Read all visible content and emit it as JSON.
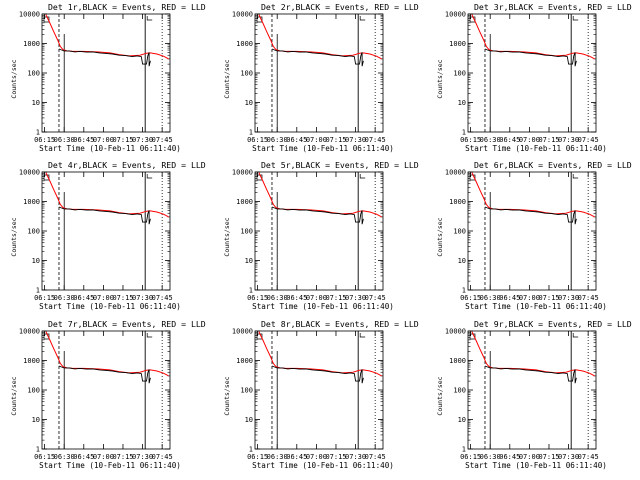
{
  "colors": {
    "events": "#000000",
    "lld": "#ff0000",
    "background": "#ffffff"
  },
  "common": {
    "xlabel": "Start Time (10-Feb-11 06:11:40)",
    "ylabel": "Counts/sec",
    "title_suffix": ",BLACK = Events, RED = LLD",
    "xticks": [
      "06:15",
      "06:30",
      "06:45",
      "07:00",
      "07:15",
      "07:30",
      "07:45"
    ],
    "yticks": [
      "1",
      "10",
      "100",
      "1000",
      "10000"
    ]
  },
  "chart_data": [
    {
      "type": "line",
      "title": "Det 1r,BLACK = Events, RED = LLD",
      "xlabel": "Start Time (10-Feb-11 06:11:40)",
      "ylabel": "Counts/sec",
      "yscale": "log",
      "ylim": [
        1,
        10000
      ],
      "series": [
        {
          "name": "Events"
        },
        {
          "name": "LLD"
        }
      ]
    },
    {
      "type": "line",
      "title": "Det 2r,BLACK = Events, RED = LLD",
      "xlabel": "Start Time (10-Feb-11 06:11:40)",
      "ylabel": "Counts/sec",
      "yscale": "log",
      "ylim": [
        1,
        10000
      ],
      "series": [
        {
          "name": "Events"
        },
        {
          "name": "LLD"
        }
      ]
    },
    {
      "type": "line",
      "title": "Det 3r,BLACK = Events, RED = LLD",
      "xlabel": "Start Time (10-Feb-11 06:11:40)",
      "ylabel": "Counts/sec",
      "yscale": "log",
      "ylim": [
        1,
        10000
      ],
      "series": [
        {
          "name": "Events"
        },
        {
          "name": "LLD"
        }
      ]
    },
    {
      "type": "line",
      "title": "Det 4r,BLACK = Events, RED = LLD",
      "xlabel": "Start Time (10-Feb-11 06:11:40)",
      "ylabel": "Counts/sec",
      "yscale": "log",
      "ylim": [
        1,
        10000
      ],
      "series": [
        {
          "name": "Events"
        },
        {
          "name": "LLD"
        }
      ]
    },
    {
      "type": "line",
      "title": "Det 5r,BLACK = Events, RED = LLD",
      "xlabel": "Start Time (10-Feb-11 06:11:40)",
      "ylabel": "Counts/sec",
      "yscale": "log",
      "ylim": [
        1,
        10000
      ],
      "series": [
        {
          "name": "Events"
        },
        {
          "name": "LLD"
        }
      ]
    },
    {
      "type": "line",
      "title": "Det 6r,BLACK = Events, RED = LLD",
      "xlabel": "Start Time (10-Feb-11 06:11:40)",
      "ylabel": "Counts/sec",
      "yscale": "log",
      "ylim": [
        1,
        10000
      ],
      "series": [
        {
          "name": "Events"
        },
        {
          "name": "LLD"
        }
      ]
    },
    {
      "type": "line",
      "title": "Det 7r,BLACK = Events, RED = LLD",
      "xlabel": "Start Time (10-Feb-11 06:11:40)",
      "ylabel": "Counts/sec",
      "yscale": "log",
      "ylim": [
        1,
        10000
      ],
      "series": [
        {
          "name": "Events"
        },
        {
          "name": "LLD"
        }
      ]
    },
    {
      "type": "line",
      "title": "Det 8r,BLACK = Events, RED = LLD",
      "xlabel": "Start Time (10-Feb-11 06:11:40)",
      "ylabel": "Counts/sec",
      "yscale": "log",
      "ylim": [
        1,
        10000
      ],
      "series": [
        {
          "name": "Events"
        },
        {
          "name": "LLD"
        }
      ]
    },
    {
      "type": "line",
      "title": "Det 9r,BLACK = Events, RED = LLD",
      "xlabel": "Start Time (10-Feb-11 06:11:40)",
      "ylabel": "Counts/sec",
      "yscale": "log",
      "ylim": [
        1,
        10000
      ],
      "series": [
        {
          "name": "Events"
        },
        {
          "name": "LLD"
        }
      ]
    }
  ]
}
